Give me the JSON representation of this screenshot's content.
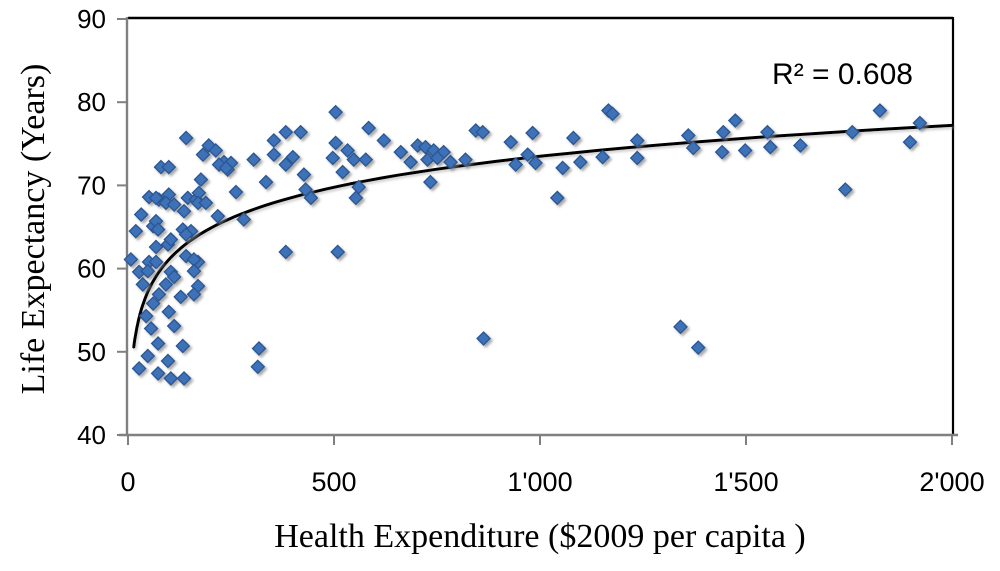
{
  "chart_data": {
    "type": "scatter",
    "title": "",
    "xlabel": "Health Expenditure ($2009 per capita )",
    "ylabel": "Life Expectancy (Years)",
    "annotation": "R² = 0.608",
    "xlim": [
      0,
      2000
    ],
    "ylim": [
      40,
      90
    ],
    "grid": false,
    "legend": "none",
    "x_ticks": [
      {
        "value": 0,
        "label": "0"
      },
      {
        "value": 500,
        "label": "500"
      },
      {
        "value": 1000,
        "label": "1'000"
      },
      {
        "value": 1500,
        "label": "1'500"
      },
      {
        "value": 2000,
        "label": "2'000"
      }
    ],
    "y_ticks": [
      {
        "value": 40,
        "label": "40"
      },
      {
        "value": 50,
        "label": "50"
      },
      {
        "value": 60,
        "label": "60"
      },
      {
        "value": 70,
        "label": "70"
      },
      {
        "value": 80,
        "label": "80"
      },
      {
        "value": 90,
        "label": "90"
      }
    ],
    "marker": {
      "shape": "diamond",
      "fill": "#3E72B8",
      "stroke": "#2B5791"
    },
    "trendline": {
      "type": "logarithmic",
      "a": 5.37,
      "b": 36.4,
      "x_start": 14,
      "x_end": 2000,
      "color": "#000000",
      "r_squared": 0.608
    },
    "points": [
      [
        141,
        75.7
      ],
      [
        196,
        74.8
      ],
      [
        213,
        74.2
      ],
      [
        182,
        73.7
      ],
      [
        233,
        72.8
      ],
      [
        250,
        72.7
      ],
      [
        305,
        73.1
      ],
      [
        242,
        71.9
      ],
      [
        354,
        73.7
      ],
      [
        335,
        70.4
      ],
      [
        262,
        69.2
      ],
      [
        51,
        68.6
      ],
      [
        75,
        68.3
      ],
      [
        99,
        68.9
      ],
      [
        145,
        68.5
      ],
      [
        165,
        68.3
      ],
      [
        172,
        69.1
      ],
      [
        32,
        66.5
      ],
      [
        61,
        65.1
      ],
      [
        133,
        64.7
      ],
      [
        153,
        64.5
      ],
      [
        218,
        66.3
      ],
      [
        281,
        65.9
      ],
      [
        19,
        64.5
      ],
      [
        68,
        62.6
      ],
      [
        97,
        62.9
      ],
      [
        141,
        61.5
      ],
      [
        170,
        60.8
      ],
      [
        7,
        61.1
      ],
      [
        51,
        60.8
      ],
      [
        104,
        59.6
      ],
      [
        80,
        72.2
      ],
      [
        99,
        72.2
      ],
      [
        177,
        70.7
      ],
      [
        221,
        72.5
      ],
      [
        238,
        72.1
      ],
      [
        68,
        68.5
      ],
      [
        92,
        67.9
      ],
      [
        112,
        67.7
      ],
      [
        170,
        67.9
      ],
      [
        136,
        66.9
      ],
      [
        189,
        67.9
      ],
      [
        68,
        65.7
      ],
      [
        73,
        64.7
      ],
      [
        141,
        64.1
      ],
      [
        104,
        63.5
      ],
      [
        68,
        60.8
      ],
      [
        160,
        61.1
      ],
      [
        112,
        59.0
      ],
      [
        170,
        57.9
      ],
      [
        27,
        59.6
      ],
      [
        48,
        59.7
      ],
      [
        160,
        59.7
      ],
      [
        36,
        58.1
      ],
      [
        92,
        58.1
      ],
      [
        75,
        56.9
      ],
      [
        128,
        56.6
      ],
      [
        160,
        56.9
      ],
      [
        61,
        55.8
      ],
      [
        99,
        54.8
      ],
      [
        44,
        54.3
      ],
      [
        112,
        53.1
      ],
      [
        56,
        52.8
      ],
      [
        133,
        50.7
      ],
      [
        73,
        51.0
      ],
      [
        48,
        49.5
      ],
      [
        97,
        48.9
      ],
      [
        27,
        48.0
      ],
      [
        73,
        47.4
      ],
      [
        104,
        46.8
      ],
      [
        136,
        46.8
      ],
      [
        318,
        50.4
      ],
      [
        315,
        48.2
      ],
      [
        504,
        78.8
      ],
      [
        383,
        76.4
      ],
      [
        419,
        76.4
      ],
      [
        584,
        76.9
      ],
      [
        621,
        75.4
      ],
      [
        354,
        75.4
      ],
      [
        504,
        75.1
      ],
      [
        533,
        74.2
      ],
      [
        400,
        73.4
      ],
      [
        497,
        73.3
      ],
      [
        548,
        73.1
      ],
      [
        577,
        73.1
      ],
      [
        383,
        72.5
      ],
      [
        427,
        71.3
      ],
      [
        521,
        71.6
      ],
      [
        662,
        74.0
      ],
      [
        703,
        74.8
      ],
      [
        722,
        74.6
      ],
      [
        742,
        74.2
      ],
      [
        766,
        74.0
      ],
      [
        686,
        72.8
      ],
      [
        727,
        73.1
      ],
      [
        751,
        73.3
      ],
      [
        783,
        72.8
      ],
      [
        819,
        73.1
      ],
      [
        844,
        76.6
      ],
      [
        734,
        70.4
      ],
      [
        560,
        69.8
      ],
      [
        553,
        68.5
      ],
      [
        431,
        69.5
      ],
      [
        444,
        68.5
      ],
      [
        383,
        62.0
      ],
      [
        509,
        62.0
      ],
      [
        1166,
        79.0
      ],
      [
        1176,
        78.6
      ],
      [
        861,
        76.4
      ],
      [
        929,
        75.2
      ],
      [
        982,
        76.3
      ],
      [
        1081,
        75.7
      ],
      [
        941,
        72.5
      ],
      [
        970,
        73.7
      ],
      [
        989,
        72.7
      ],
      [
        1055,
        72.1
      ],
      [
        1098,
        72.8
      ],
      [
        1152,
        73.4
      ],
      [
        1236,
        75.4
      ],
      [
        1236,
        73.3
      ],
      [
        1360,
        76.0
      ],
      [
        1372,
        74.5
      ],
      [
        1042,
        68.5
      ],
      [
        1825,
        79.0
      ],
      [
        1474,
        77.8
      ],
      [
        1445,
        76.4
      ],
      [
        1442,
        74.0
      ],
      [
        1498,
        74.2
      ],
      [
        1552,
        76.4
      ],
      [
        1559,
        74.6
      ],
      [
        1632,
        74.8
      ],
      [
        1758,
        76.4
      ],
      [
        1898,
        75.2
      ],
      [
        1922,
        77.5
      ],
      [
        1741,
        69.5
      ],
      [
        863,
        51.6
      ],
      [
        1341,
        53.0
      ],
      [
        1384,
        50.5
      ]
    ]
  },
  "colors": {
    "background": "#ffffff",
    "axis_line": "#808080",
    "plot_border": "#000000",
    "tick": "#808080",
    "text": "#000000",
    "marker_fill": "#3E72B8",
    "marker_stroke": "#2B5791",
    "trendline": "#000000"
  },
  "layout_values": {
    "tick_font_size": 26
  }
}
